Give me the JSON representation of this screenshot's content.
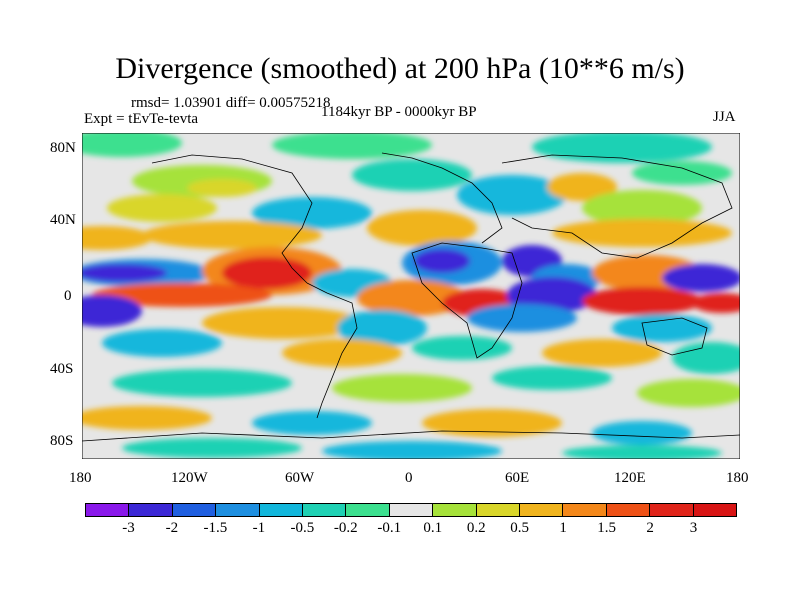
{
  "title": "Divergence (smoothed) at 200 hPa (10**6 m/s)",
  "stats": "rmsd= 1.03901 diff= 0.00575218",
  "experiment": "Expt = tEvTe-tevta",
  "period": "1184kyr BP - 0000kyr BP",
  "season": "JJA",
  "lat_ticks": [
    "80N",
    "40N",
    "0",
    "40S",
    "80S"
  ],
  "lon_ticks": [
    "180",
    "120W",
    "60W",
    "0",
    "60E",
    "120E",
    "180"
  ],
  "colorbar": {
    "labels": [
      "-3",
      "-2",
      "-1.5",
      "-1",
      "-0.5",
      "-0.2",
      "-0.1",
      "0.1",
      "0.2",
      "0.5",
      "1",
      "1.5",
      "2",
      "3"
    ],
    "colors": [
      "#8a19ea",
      "#3c28d6",
      "#1f5fe0",
      "#1e8fe0",
      "#12b7dc",
      "#1fd1b4",
      "#3ce08f",
      "#e6e6e6",
      "#a6e23a",
      "#d9d62a",
      "#f0b41e",
      "#f3871a",
      "#ee5116",
      "#e0241a",
      "#d81414"
    ]
  },
  "colors": {
    "neutral": "#e6e6e6",
    "outline": "#000000"
  }
}
